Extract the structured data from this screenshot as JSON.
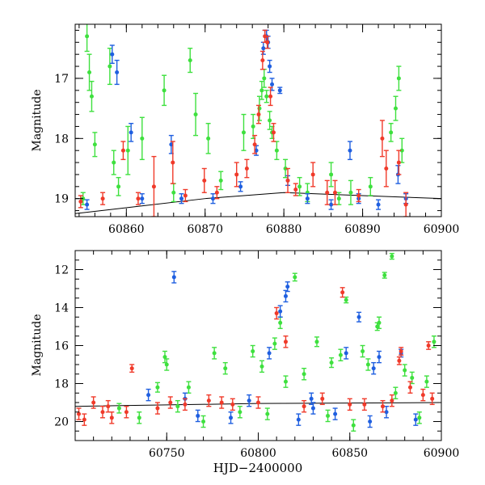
{
  "colors": {
    "green": "#3ee03e",
    "blue": "#1f5fe0",
    "red": "#f03a2a",
    "model": "#000000",
    "axis": "#000000"
  },
  "chart_data": [
    {
      "type": "scatter",
      "title": "",
      "xlabel": "",
      "ylabel": "Magnitude",
      "xlim": [
        60853.5,
        60900
      ],
      "ylim": [
        19.3,
        16.1
      ],
      "y_inverted": true,
      "x_ticks": [
        60860,
        60870,
        60880,
        60890,
        60900
      ],
      "x_tick_labels": [
        "60860",
        "60870",
        "60880",
        "60890",
        "60900"
      ],
      "y_ticks": [
        17,
        18,
        19
      ],
      "y_tick_labels": [
        "17",
        "18",
        "19"
      ],
      "legend": "none",
      "model_line": {
        "x": [
          60853.5,
          60870,
          60880,
          60890,
          60900
        ],
        "y": [
          19.25,
          19.0,
          18.9,
          18.95,
          19.0
        ]
      },
      "series": [
        {
          "color_key": "green",
          "x": [
            60855,
            60855.3,
            60855.6,
            60856,
            60857.9,
            60858.4,
            60860.2,
            60862,
            60864.8,
            60868.1,
            60868.8,
            60870.4,
            60874.9,
            60876.1,
            60876.9,
            60877.2,
            60877.5,
            60877.8,
            60878.2,
            60878.5,
            60879.1,
            60880.2,
            60882,
            60886,
            60888.5,
            60893.6,
            60894.2,
            60894.6,
            60895,
            60854.5,
            60859,
            60866,
            60872,
            60883,
            60887,
            60891
          ],
          "y": [
            16.3,
            16.9,
            17.3,
            18.1,
            16.8,
            18.4,
            18.2,
            18.0,
            17.2,
            16.7,
            17.6,
            18.0,
            17.9,
            17.8,
            17.5,
            17.2,
            17.0,
            17.3,
            17.7,
            17.9,
            18.2,
            18.5,
            18.8,
            18.6,
            18.9,
            17.9,
            17.5,
            17.0,
            18.2,
            19.0,
            18.8,
            18.9,
            18.7,
            18.9,
            19.0,
            18.8
          ],
          "err": [
            0.25,
            0.3,
            0.25,
            0.2,
            0.3,
            0.2,
            0.4,
            0.35,
            0.25,
            0.2,
            0.35,
            0.25,
            0.3,
            0.2,
            0.2,
            0.15,
            0.15,
            0.1,
            0.15,
            0.1,
            0.15,
            0.15,
            0.15,
            0.2,
            0.2,
            0.15,
            0.2,
            0.2,
            0.2,
            0.1,
            0.15,
            0.15,
            0.15,
            0.15,
            0.1,
            0.15
          ]
        },
        {
          "color_key": "blue",
          "x": [
            60858.2,
            60858.8,
            60860.6,
            60865.7,
            60877.4,
            60877.6,
            60877.8,
            60878,
            60878.2,
            60878.5,
            60879.5,
            60888.4,
            60894.5,
            60855,
            60862,
            60867,
            60871,
            60874.5,
            60876.5,
            60880.5,
            60883,
            60886,
            60889.5,
            60892,
            60895.5
          ],
          "y": [
            16.6,
            16.9,
            17.9,
            18.1,
            16.5,
            16.3,
            16.3,
            16.4,
            16.8,
            17.1,
            17.2,
            18.2,
            18.6,
            19.1,
            19.0,
            19.0,
            19.0,
            18.8,
            18.2,
            18.7,
            19.0,
            19.1,
            19.0,
            19.1,
            19.0
          ],
          "err": [
            0.15,
            0.2,
            0.15,
            0.15,
            0.1,
            0.1,
            0.1,
            0.1,
            0.1,
            0.1,
            0.05,
            0.15,
            0.15,
            0.08,
            0.08,
            0.08,
            0.08,
            0.08,
            0.08,
            0.08,
            0.08,
            0.08,
            0.08,
            0.08,
            0.08
          ]
        },
        {
          "color_key": "red",
          "x": [
            60859.6,
            60863.5,
            60865.9,
            60869.9,
            60874,
            60875.3,
            60876.3,
            60876.8,
            60877.3,
            60877.6,
            60877.9,
            60878.3,
            60878.7,
            60880.5,
            60883.7,
            60885.5,
            60886.5,
            60892.5,
            60893,
            60894.6,
            60895.5,
            60854.2,
            60857,
            60861.5,
            60867.5,
            60871.5,
            60881.5,
            60889.5
          ],
          "y": [
            18.2,
            18.8,
            18.4,
            18.7,
            18.6,
            18.5,
            18.1,
            17.6,
            16.7,
            16.3,
            16.4,
            17.3,
            17.9,
            18.7,
            18.6,
            18.9,
            18.9,
            18.0,
            18.5,
            18.4,
            19.1,
            19.05,
            19.0,
            19.0,
            18.95,
            18.9,
            18.85,
            18.95
          ],
          "err": [
            0.15,
            0.5,
            0.35,
            0.2,
            0.2,
            0.15,
            0.15,
            0.15,
            0.15,
            0.1,
            0.1,
            0.15,
            0.15,
            0.2,
            0.2,
            0.2,
            0.2,
            0.3,
            0.3,
            0.2,
            0.2,
            0.1,
            0.1,
            0.1,
            0.1,
            0.1,
            0.1,
            0.1
          ]
        }
      ]
    },
    {
      "type": "scatter",
      "title": "",
      "xlabel": "HJD−2400000",
      "ylabel": "Magnitude",
      "xlim": [
        60700,
        60900
      ],
      "ylim": [
        21,
        11
      ],
      "y_inverted": true,
      "x_ticks": [
        60750,
        60800,
        60850,
        60900
      ],
      "x_tick_labels": [
        "60750",
        "60800",
        "60850",
        "60900"
      ],
      "y_ticks": [
        12,
        14,
        16,
        18,
        20
      ],
      "y_tick_labels": [
        "12",
        "14",
        "16",
        "18",
        "20"
      ],
      "legend": "none",
      "model_line": {
        "x": [
          60700,
          60800,
          60900
        ],
        "y": [
          19.2,
          19.05,
          19.0
        ]
      },
      "series": [
        {
          "color_key": "green",
          "x": [
            60724,
            60745,
            60749,
            60762,
            60776,
            60782,
            60797,
            60802,
            60809,
            60820,
            60832,
            60840,
            60845,
            60848,
            60857,
            60865,
            60869,
            60873,
            60884,
            60892,
            60896,
            60750,
            60790,
            60812,
            60825,
            60860,
            60880,
            60735,
            60770,
            60805,
            60838,
            60852,
            60875,
            60888,
            60756,
            60815,
            60866
          ],
          "y": [
            19.3,
            18.2,
            16.6,
            18.2,
            16.4,
            17.2,
            16.3,
            17.1,
            15.9,
            12.4,
            15.8,
            16.9,
            16.5,
            13.6,
            16.3,
            15.0,
            12.3,
            11.3,
            17.7,
            17.9,
            15.8,
            17.0,
            19.5,
            14.8,
            17.5,
            17.0,
            17.3,
            19.8,
            20.0,
            19.6,
            19.7,
            20.2,
            18.5,
            19.8,
            19.2,
            17.9,
            14.8
          ],
          "err": [
            0.25,
            0.25,
            0.3,
            0.3,
            0.3,
            0.3,
            0.3,
            0.3,
            0.3,
            0.2,
            0.25,
            0.25,
            0.3,
            0.15,
            0.3,
            0.2,
            0.15,
            0.15,
            0.3,
            0.3,
            0.3,
            0.3,
            0.3,
            0.3,
            0.3,
            0.3,
            0.3,
            0.3,
            0.3,
            0.3,
            0.3,
            0.3,
            0.3,
            0.3,
            0.3,
            0.3,
            0.3
          ]
        },
        {
          "color_key": "blue",
          "x": [
            60754,
            60806,
            60812,
            60815,
            60816,
            60829,
            60848,
            60855,
            60863,
            60866,
            60878,
            60767,
            60785,
            60822,
            60842,
            60861,
            60740,
            60760,
            60795,
            60830,
            60870,
            60886
          ],
          "y": [
            12.4,
            16.4,
            14.2,
            13.4,
            12.9,
            18.8,
            16.4,
            14.5,
            17.2,
            16.6,
            16.4,
            19.7,
            19.8,
            19.9,
            19.6,
            20.0,
            18.6,
            18.8,
            18.9,
            19.3,
            19.5,
            19.9
          ],
          "err": [
            0.3,
            0.3,
            0.3,
            0.3,
            0.25,
            0.3,
            0.3,
            0.25,
            0.3,
            0.3,
            0.2,
            0.3,
            0.3,
            0.3,
            0.3,
            0.3,
            0.3,
            0.3,
            0.3,
            0.3,
            0.3,
            0.3
          ]
        },
        {
          "color_key": "red",
          "x": [
            60710,
            60718,
            60731,
            60745,
            60752,
            60773,
            60786,
            60810,
            60815,
            60835,
            60846,
            60858,
            60868,
            60877,
            60878,
            60883,
            60890,
            60893,
            60702,
            60705,
            60715,
            60720,
            60728,
            60760,
            60780,
            60800,
            60825,
            60850,
            60873,
            60895
          ],
          "y": [
            19.0,
            19.2,
            17.2,
            19.3,
            19.0,
            18.9,
            19.1,
            14.3,
            15.8,
            18.8,
            13.2,
            19.1,
            19.2,
            16.8,
            16.3,
            18.2,
            18.6,
            16.0,
            19.6,
            19.9,
            19.5,
            19.8,
            19.5,
            19.1,
            19.0,
            19.0,
            19.2,
            19.1,
            18.9,
            18.8
          ],
          "err": [
            0.3,
            0.3,
            0.2,
            0.3,
            0.3,
            0.3,
            0.3,
            0.3,
            0.3,
            0.3,
            0.25,
            0.3,
            0.3,
            0.2,
            0.2,
            0.3,
            0.3,
            0.2,
            0.3,
            0.3,
            0.3,
            0.3,
            0.3,
            0.3,
            0.3,
            0.3,
            0.3,
            0.3,
            0.3,
            0.3
          ]
        }
      ]
    }
  ]
}
